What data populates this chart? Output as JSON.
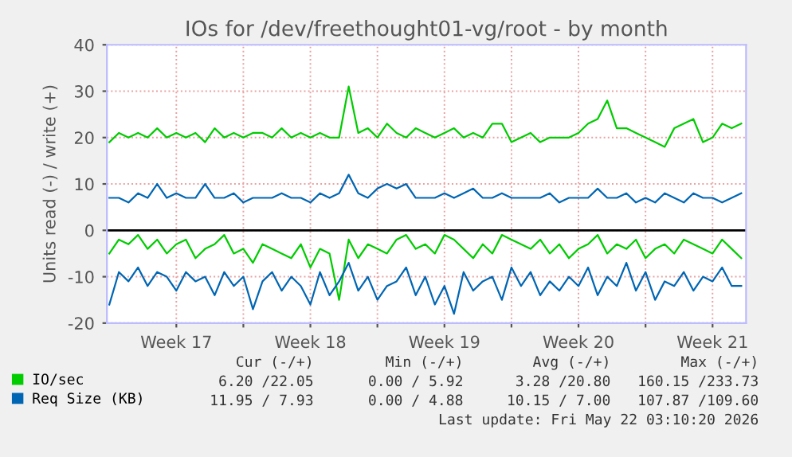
{
  "chart_data": {
    "type": "line",
    "title": "IOs for /dev/freethought01-vg/root - by month",
    "ylabel": "Units read (-) / write (+)",
    "x": [
      "2026-04-20T00:00",
      "2026-04-20T12:00",
      "2026-04-21T00:00",
      "2026-04-21T12:00",
      "2026-04-22T00:00",
      "2026-04-22T12:00",
      "2026-04-23T00:00",
      "2026-04-23T12:00",
      "2026-04-24T00:00",
      "2026-04-24T12:00",
      "2026-04-25T00:00",
      "2026-04-25T12:00",
      "2026-04-26T00:00",
      "2026-04-26T12:00",
      "2026-04-27T00:00",
      "2026-04-27T12:00",
      "2026-04-28T00:00",
      "2026-04-28T12:00",
      "2026-04-29T00:00",
      "2026-04-29T12:00",
      "2026-04-30T00:00",
      "2026-04-30T12:00",
      "2026-05-01T00:00",
      "2026-05-01T12:00",
      "2026-05-02T00:00",
      "2026-05-02T12:00",
      "2026-05-03T00:00",
      "2026-05-03T12:00",
      "2026-05-04T00:00",
      "2026-05-04T12:00",
      "2026-05-05T00:00",
      "2026-05-05T12:00",
      "2026-05-06T00:00",
      "2026-05-06T12:00",
      "2026-05-07T00:00",
      "2026-05-07T12:00",
      "2026-05-08T00:00",
      "2026-05-08T12:00",
      "2026-05-09T00:00",
      "2026-05-09T12:00",
      "2026-05-10T00:00",
      "2026-05-10T12:00",
      "2026-05-11T00:00",
      "2026-05-11T12:00",
      "2026-05-12T00:00",
      "2026-05-12T12:00",
      "2026-05-13T00:00",
      "2026-05-13T12:00",
      "2026-05-14T00:00",
      "2026-05-14T12:00",
      "2026-05-15T00:00",
      "2026-05-15T12:00",
      "2026-05-16T00:00",
      "2026-05-16T12:00",
      "2026-05-17T00:00",
      "2026-05-17T12:00",
      "2026-05-18T00:00",
      "2026-05-18T12:00",
      "2026-05-19T00:00",
      "2026-05-19T12:00",
      "2026-05-20T00:00",
      "2026-05-20T12:00",
      "2026-05-21T00:00",
      "2026-05-21T12:00",
      "2026-05-22T00:00",
      "2026-05-22T12:00",
      "2026-05-23T00:00"
    ],
    "xlim": [
      "2026-04-19T21:00",
      "2026-05-23T06:00"
    ],
    "xticks": [
      {
        "value": "2026-04-23T12:00",
        "label": "Week 17"
      },
      {
        "value": "2026-04-27T00:00",
        "label": null
      },
      {
        "value": "2026-04-30T12:00",
        "label": "Week 18"
      },
      {
        "value": "2026-05-04T00:00",
        "label": null
      },
      {
        "value": "2026-05-07T12:00",
        "label": "Week 19"
      },
      {
        "value": "2026-05-11T00:00",
        "label": null
      },
      {
        "value": "2026-05-14T12:00",
        "label": "Week 20"
      },
      {
        "value": "2026-05-18T00:00",
        "label": null
      },
      {
        "value": "2026-05-21T12:00",
        "label": "Week 21"
      }
    ],
    "ylim": [
      -20,
      40
    ],
    "yticks": [
      -20,
      -10,
      0,
      10,
      20,
      30,
      40
    ],
    "grid": true,
    "legend": "bottom left",
    "ref_lines": [
      {
        "axis": "y",
        "value": 0,
        "color": "#000000"
      }
    ],
    "series": [
      {
        "name": "IO/sec",
        "color": "#00cc00",
        "values": [
          19,
          21,
          20,
          21,
          20,
          22,
          20,
          21,
          20,
          21,
          19,
          22,
          20,
          21,
          20,
          21,
          21,
          20,
          22,
          20,
          21,
          20,
          21,
          20,
          20,
          31,
          21,
          22,
          20,
          23,
          21,
          20,
          22,
          21,
          20,
          21,
          22,
          20,
          21,
          20,
          23,
          23,
          19,
          20,
          21,
          19,
          20,
          20,
          20,
          21,
          23,
          24,
          28,
          22,
          22,
          21,
          20,
          19,
          18,
          22,
          23,
          24,
          19,
          20,
          23,
          22,
          23
        ]
      },
      {
        "color": "#00cc00",
        "values": [
          -5,
          -2,
          -3,
          -1,
          -4,
          -2,
          -5,
          -3,
          -2,
          -6,
          -4,
          -3,
          -1,
          -5,
          -4,
          -7,
          -3,
          -4,
          -5,
          -6,
          -3,
          -8,
          -4,
          -5,
          -15,
          -2,
          -6,
          -3,
          -4,
          -5,
          -2,
          -1,
          -4,
          -3,
          -5,
          -1,
          -2,
          -4,
          -6,
          -3,
          -5,
          -1,
          -2,
          -3,
          -4,
          -2,
          -5,
          -3,
          -6,
          -4,
          -3,
          -1,
          -5,
          -3,
          -4,
          -2,
          -6,
          -4,
          -3,
          -5,
          -2,
          -3,
          -4,
          -5,
          -2,
          -4,
          -6
        ]
      },
      {
        "name": "Req Size (KB)",
        "color": "#0066b3",
        "values": [
          7,
          7,
          6,
          8,
          7,
          10,
          7,
          8,
          7,
          7,
          10,
          7,
          7,
          8,
          6,
          7,
          7,
          7,
          8,
          7,
          7,
          6,
          8,
          7,
          8,
          12,
          8,
          7,
          9,
          10,
          9,
          10,
          7,
          7,
          7,
          8,
          7,
          8,
          9,
          7,
          7,
          8,
          7,
          7,
          7,
          7,
          8,
          6,
          7,
          7,
          7,
          9,
          7,
          7,
          8,
          6,
          7,
          6,
          8,
          7,
          6,
          8,
          7,
          7,
          6,
          7,
          8
        ]
      },
      {
        "color": "#0066b3",
        "values": [
          -16,
          -9,
          -11,
          -8,
          -12,
          -9,
          -10,
          -13,
          -9,
          -11,
          -10,
          -14,
          -9,
          -12,
          -10,
          -17,
          -11,
          -9,
          -13,
          -10,
          -12,
          -16,
          -9,
          -14,
          -11,
          -7,
          -13,
          -10,
          -15,
          -12,
          -11,
          -8,
          -14,
          -10,
          -16,
          -12,
          -18,
          -9,
          -13,
          -11,
          -10,
          -15,
          -8,
          -12,
          -9,
          -14,
          -11,
          -13,
          -10,
          -12,
          -8,
          -14,
          -10,
          -12,
          -7,
          -13,
          -9,
          -15,
          -11,
          -12,
          -9,
          -13,
          -10,
          -11,
          -8,
          -12,
          -12
        ]
      }
    ],
    "annotations": [
      "Cur (-/+)",
      "Min (-/+)",
      "Avg (-/+)",
      "Max (-/+)",
      "6.20 /22.05",
      "0.00 / 5.92",
      "3.28 /20.80",
      "160.15 /233.73",
      "11.95 / 7.93",
      "0.00 / 4.88",
      "10.15 / 7.00",
      "107.87 /109.60",
      "Last update: Fri May 22 03:10:20 2026"
    ]
  }
}
